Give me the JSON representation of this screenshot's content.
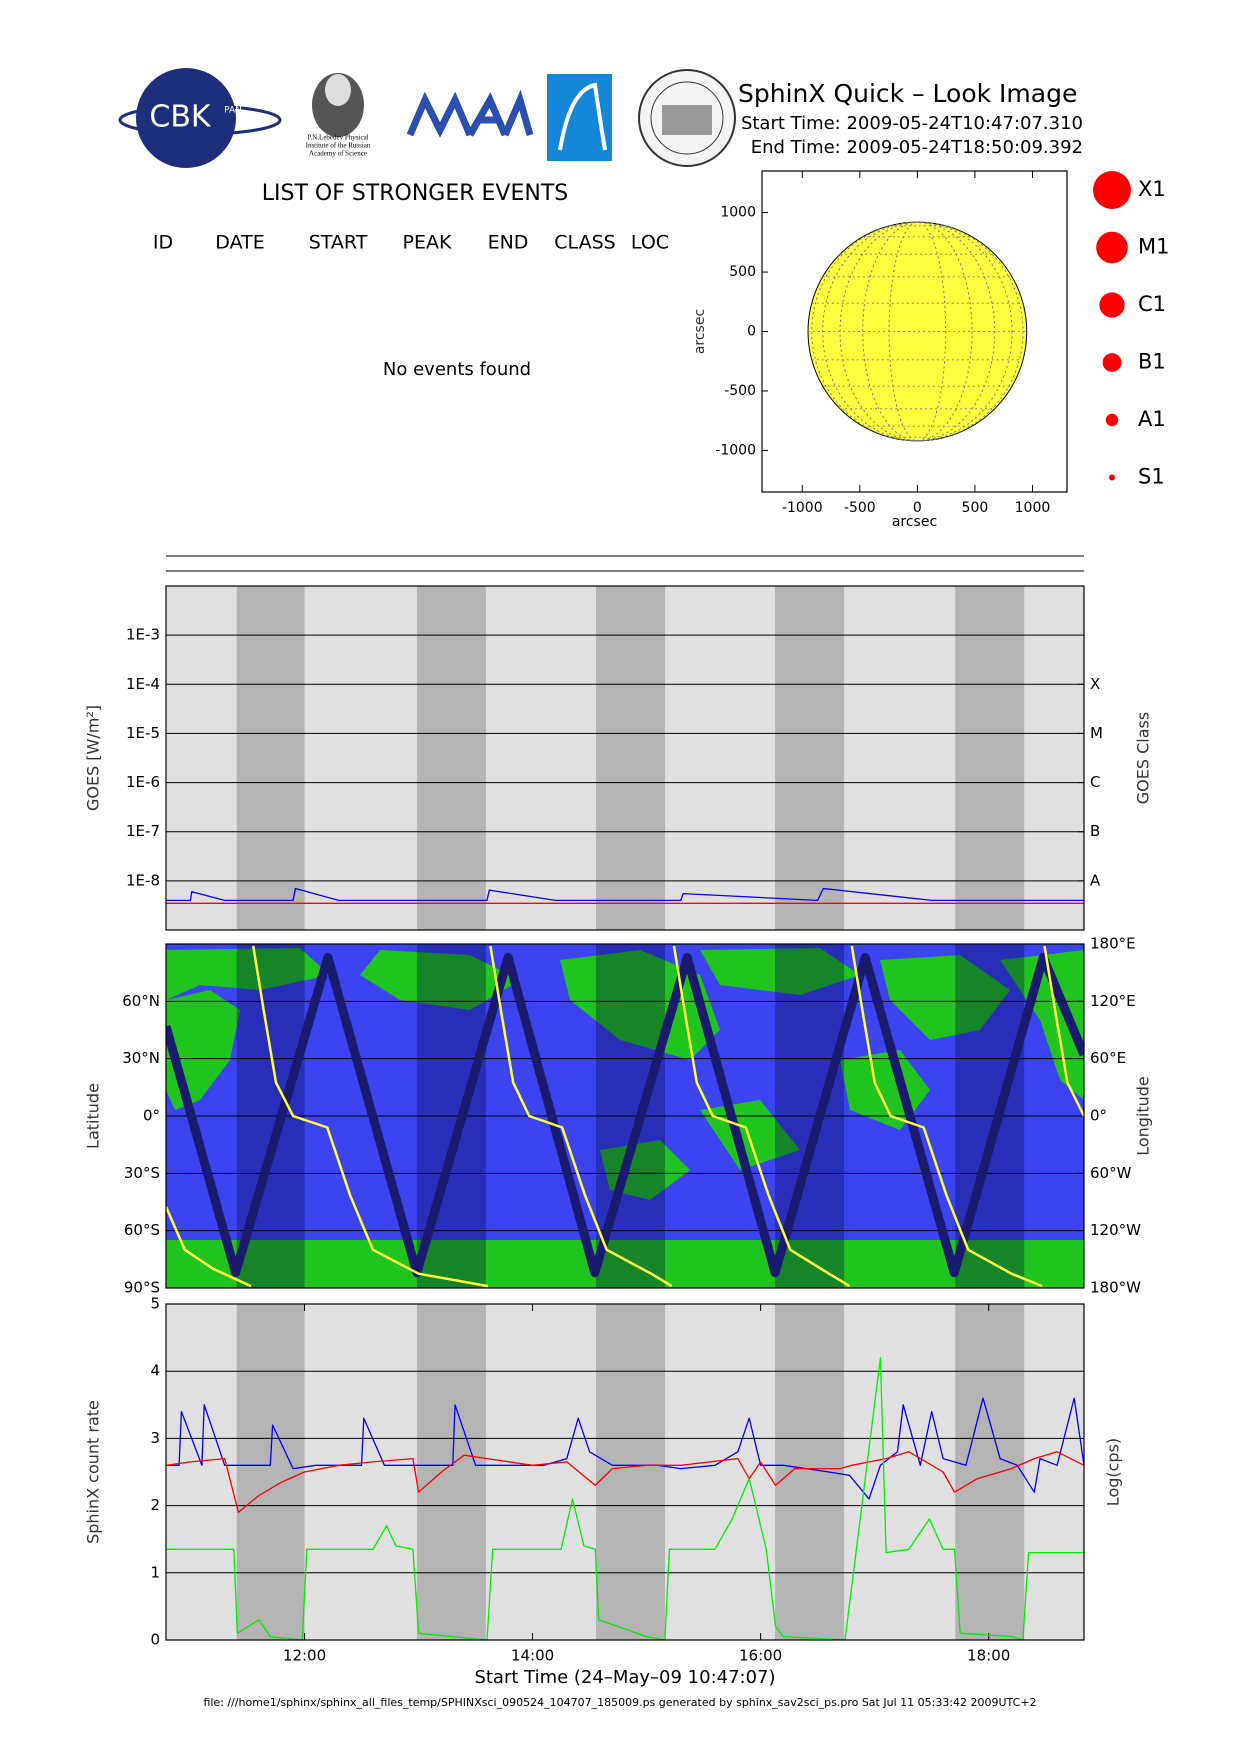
{
  "header": {
    "title": "SphinX Quick – Look Image",
    "start_time": "Start Time: 2009-05-24T10:47:07.310",
    "end_time": "End Time: 2009-05-24T18:50:09.392"
  },
  "logos": {
    "cbk": "CBK",
    "cbk_sub": "PAN",
    "lebedev": [
      "P.N.Lebedev Physical",
      "Institute of the Russian",
      "Academy of Science"
    ]
  },
  "events": {
    "title": "LIST OF STRONGER EVENTS",
    "columns": [
      "ID",
      "DATE",
      "START",
      "PEAK",
      "END",
      "CLASS",
      "LOC"
    ],
    "message": "No events found"
  },
  "chart_data": [
    {
      "type": "disk",
      "xlabel": "arcsec",
      "ylabel": "arcsec",
      "xlim": [
        -1350,
        1300
      ],
      "ylim": [
        -1350,
        1350
      ],
      "xticks": [
        -1000,
        -500,
        0,
        500,
        1000
      ],
      "yticks": [
        -1000,
        -500,
        0,
        500,
        1000
      ],
      "disk_radius": 950,
      "color": "#ffff40",
      "legend": {
        "labels": [
          "X1",
          "M1",
          "C1",
          "B1",
          "A1",
          "S1"
        ],
        "color": "#ff0000"
      }
    },
    {
      "type": "line",
      "ylabel": "GOES [W/m²]",
      "y2label": "GOES Class",
      "log_scale": true,
      "grid": true,
      "xlim": [
        10.785,
        18.836
      ],
      "ylim": [
        1e-09,
        0.01
      ],
      "y2lim": [
        1e-09,
        0.01
      ],
      "yticks": [
        {
          "value": 0.001,
          "label": "1E-3"
        },
        {
          "value": 0.0001,
          "label": "1E-4"
        },
        {
          "value": 1e-05,
          "label": "1E-5"
        },
        {
          "value": 1e-06,
          "label": "1E-6"
        },
        {
          "value": 1e-07,
          "label": "1E-7"
        },
        {
          "value": 1e-08,
          "label": "1E-8"
        }
      ],
      "y2ticks": [
        {
          "value": 1e-08,
          "label": "A"
        },
        {
          "value": 1e-07,
          "label": "B"
        },
        {
          "value": 1e-06,
          "label": "C"
        },
        {
          "value": 1e-05,
          "label": "M"
        },
        {
          "value": 0.0001,
          "label": "X"
        }
      ],
      "background": "#e0e0e0",
      "shade_color": "#b4b4b4",
      "shaded": [
        [
          11.405,
          12.0
        ],
        [
          12.985,
          13.59
        ],
        [
          14.556,
          15.161
        ],
        [
          16.127,
          16.732
        ],
        [
          17.707,
          18.312
        ]
      ],
      "series": [
        {
          "color": "#0000ff",
          "x": [
            10.785,
            11.0,
            11.01,
            11.3,
            11.5,
            11.9,
            11.92,
            12.3,
            13.0,
            13.6,
            13.62,
            14.2,
            15.3,
            15.32,
            16.5,
            16.55,
            17.5,
            18.3,
            18.836
          ],
          "values": [
            4e-09,
            4e-09,
            6e-09,
            4e-09,
            4e-09,
            4e-09,
            7e-09,
            4e-09,
            4e-09,
            4e-09,
            6.5e-09,
            4e-09,
            4e-09,
            5.5e-09,
            4e-09,
            7e-09,
            4e-09,
            4e-09,
            4e-09
          ]
        },
        {
          "color": "#ff0000",
          "x": [
            10.785,
            18.836
          ],
          "values": [
            3.5e-09,
            3.5e-09
          ]
        }
      ]
    },
    {
      "type": "line",
      "ylabel": "Latitude",
      "y2label": "Longitude",
      "grid": true,
      "xlim": [
        10.785,
        18.836
      ],
      "ylim": [
        -90,
        90
      ],
      "y2lim": [
        -180,
        180
      ],
      "yticks": [
        {
          "value": -90,
          "label": "90°S"
        },
        {
          "value": -60,
          "label": "60°S"
        },
        {
          "value": -30,
          "label": "30°S"
        },
        {
          "value": 0,
          "label": "0°"
        },
        {
          "value": 30,
          "label": "30°N"
        },
        {
          "value": 60,
          "label": "60°N"
        }
      ],
      "y2ticks": [
        {
          "value": -180,
          "label": "180°W"
        },
        {
          "value": -120,
          "label": "120°W"
        },
        {
          "value": -60,
          "label": "60°W"
        },
        {
          "value": 0,
          "label": "0°"
        },
        {
          "value": 60,
          "label": "60°E"
        },
        {
          "value": 120,
          "label": "120°E"
        },
        {
          "value": 180,
          "label": "180°E"
        }
      ],
      "background": "#3c44f2",
      "shade_color": "rgba(0,0,60,0.32)",
      "shaded": [
        [
          11.405,
          12.0
        ],
        [
          12.985,
          13.59
        ],
        [
          14.556,
          15.161
        ],
        [
          16.127,
          16.732
        ],
        [
          17.707,
          18.312
        ]
      ],
      "series": [
        {
          "color": "#1a1a6e",
          "x": [
            10.785,
            11.395,
            12.205,
            12.985,
            13.785,
            14.546,
            15.356,
            16.127,
            16.917,
            17.698,
            18.478,
            18.836
          ],
          "values": [
            47,
            -82,
            83,
            -82,
            83,
            -82,
            83,
            -82,
            83,
            -82,
            83,
            32
          ]
        },
        {
          "color": "#ffff40",
          "axis": "y2",
          "x": [
            10.785,
            10.95,
            11.2,
            11.53,
            11.54,
            11.55,
            11.65,
            11.75,
            11.9,
            12.2,
            12.4,
            12.6,
            13.0,
            13.61,
            13.62,
            13.63,
            13.73,
            13.83,
            13.97,
            14.26,
            14.46,
            14.65,
            15.04,
            15.22,
            15.23,
            15.24,
            15.34,
            15.44,
            15.58,
            15.87,
            16.07,
            16.26,
            16.6,
            16.78,
            16.79,
            16.8,
            16.9,
            17.0,
            17.14,
            17.43,
            17.63,
            17.82,
            18.2,
            18.47,
            18.48,
            18.49,
            18.59,
            18.69,
            18.836
          ],
          "values": [
            -95,
            -140,
            -160,
            -178,
            null,
            178,
            105,
            35,
            0,
            -12,
            -83,
            -140,
            -165,
            -178,
            null,
            178,
            105,
            35,
            0,
            -12,
            -83,
            -140,
            -165,
            -178,
            null,
            178,
            105,
            35,
            0,
            -12,
            -83,
            -140,
            -165,
            -178,
            null,
            178,
            105,
            35,
            0,
            -12,
            -83,
            -140,
            -165,
            -178,
            null,
            178,
            105,
            35,
            0
          ]
        }
      ]
    },
    {
      "type": "line",
      "ylabel": "SphinX count rate",
      "y2label": "Log(cps)",
      "xlabel": "Start Time (24–May–09 10:47:07)",
      "grid": true,
      "xlim": [
        10.785,
        18.836
      ],
      "ylim": [
        0,
        5
      ],
      "yticks": [
        0,
        1,
        2,
        3,
        4,
        5
      ],
      "xticks": [
        {
          "value": 12,
          "label": "12:00"
        },
        {
          "value": 14,
          "label": "14:00"
        },
        {
          "value": 16,
          "label": "16:00"
        },
        {
          "value": 18,
          "label": "18:00"
        }
      ],
      "background": "#e0e0e0",
      "shade_color": "#b4b4b4",
      "shaded": [
        [
          11.405,
          12.0
        ],
        [
          12.985,
          13.59
        ],
        [
          14.556,
          15.161
        ],
        [
          16.127,
          16.732
        ],
        [
          17.707,
          18.312
        ]
      ],
      "series": [
        {
          "color": "#0000ff",
          "x": [
            10.79,
            10.9,
            10.92,
            11.1,
            11.12,
            11.3,
            11.5,
            11.7,
            11.72,
            11.9,
            12.1,
            12.3,
            12.5,
            12.52,
            12.7,
            12.9,
            13.1,
            13.3,
            13.32,
            13.5,
            13.7,
            13.9,
            14.1,
            14.3,
            14.4,
            14.5,
            14.7,
            14.9,
            15.1,
            15.3,
            15.6,
            15.8,
            15.9,
            16.0,
            16.2,
            16.4,
            16.6,
            16.78,
            16.95,
            17.05,
            17.2,
            17.25,
            17.4,
            17.5,
            17.6,
            17.8,
            17.95,
            18.1,
            18.25,
            18.4,
            18.45,
            18.6,
            18.75,
            18.836
          ],
          "values": [
            2.6,
            2.6,
            3.4,
            2.6,
            3.5,
            2.6,
            2.6,
            2.6,
            3.2,
            2.55,
            2.6,
            2.6,
            2.6,
            3.3,
            2.6,
            2.6,
            2.6,
            2.6,
            3.5,
            2.6,
            2.6,
            2.6,
            2.6,
            2.7,
            3.3,
            2.8,
            2.6,
            2.6,
            2.6,
            2.55,
            2.6,
            2.8,
            3.3,
            2.6,
            2.6,
            2.55,
            2.5,
            2.45,
            2.1,
            2.6,
            2.8,
            3.5,
            2.6,
            3.4,
            2.7,
            2.6,
            3.6,
            2.7,
            2.6,
            2.2,
            2.7,
            2.6,
            3.6,
            2.6
          ]
        },
        {
          "color": "#ff0000",
          "x": [
            10.79,
            11.0,
            11.3,
            11.42,
            11.6,
            11.8,
            12.0,
            12.3,
            12.6,
            12.95,
            13.0,
            13.2,
            13.4,
            13.6,
            14.0,
            14.3,
            14.55,
            14.7,
            15.0,
            15.3,
            15.8,
            15.9,
            16.0,
            16.13,
            16.3,
            16.7,
            16.8,
            17.1,
            17.3,
            17.6,
            17.7,
            17.9,
            18.2,
            18.4,
            18.6,
            18.836
          ],
          "values": [
            2.6,
            2.65,
            2.7,
            1.9,
            2.15,
            2.35,
            2.5,
            2.6,
            2.65,
            2.7,
            2.2,
            2.5,
            2.75,
            2.7,
            2.6,
            2.65,
            2.3,
            2.55,
            2.6,
            2.6,
            2.7,
            2.4,
            2.65,
            2.3,
            2.55,
            2.55,
            2.6,
            2.7,
            2.8,
            2.5,
            2.2,
            2.4,
            2.55,
            2.7,
            2.8,
            2.6
          ]
        },
        {
          "color": "#00ee00",
          "x": [
            10.79,
            11.38,
            11.41,
            11.6,
            11.7,
            11.98,
            12.02,
            12.6,
            12.72,
            12.8,
            12.95,
            13.0,
            13.3,
            13.6,
            13.65,
            14.25,
            14.35,
            14.45,
            14.55,
            14.58,
            15.0,
            15.16,
            15.2,
            15.6,
            15.75,
            15.9,
            16.05,
            16.13,
            16.2,
            16.74,
            17.05,
            17.1,
            17.3,
            17.48,
            17.6,
            17.7,
            17.75,
            18.2,
            18.3,
            18.35,
            18.836
          ],
          "values": [
            1.35,
            1.35,
            0.1,
            0.3,
            0.05,
            0,
            1.35,
            1.35,
            1.7,
            1.4,
            1.35,
            0.1,
            0.05,
            0,
            1.35,
            1.35,
            2.1,
            1.4,
            1.35,
            0.3,
            0.05,
            0,
            1.35,
            1.35,
            1.8,
            2.4,
            1.35,
            0.2,
            0.05,
            0,
            4.2,
            1.3,
            1.35,
            1.8,
            1.35,
            1.35,
            0.1,
            0.05,
            0,
            1.3,
            1.3
          ]
        }
      ]
    }
  ],
  "footer": "file: ///home1/sphinx/sphinx_all_files_temp/SPHINXsci_090524_104707_185009.ps generated by sphinx_sav2sci_ps.pro Sat Jul 11 05:33:42 2009UTC+2"
}
